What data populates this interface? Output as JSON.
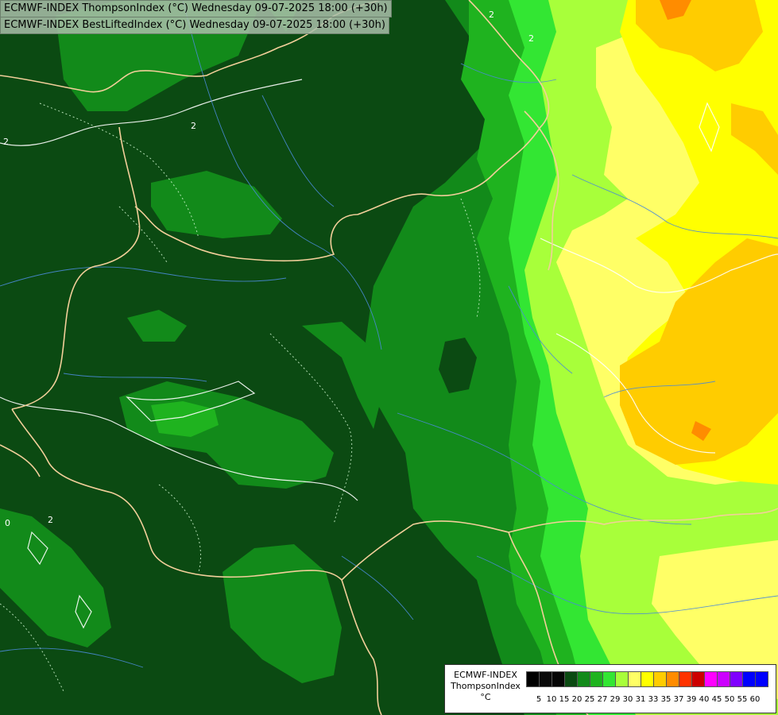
{
  "header": {
    "line1": "ECMWF-INDEX ThompsonIndex (°C) Wednesday 09-07-2025 18:00 (+30h)",
    "line2": "ECMWF-INDEX BestLiftedIndex (°C) Wednesday 09-07-2025 18:00 (+30h)"
  },
  "map": {
    "contour_labels": [
      "2",
      "2",
      "2",
      "2",
      "2",
      "0"
    ]
  },
  "legend": {
    "model": "ECMWF-INDEX",
    "variable": "ThompsonIndex",
    "unit": "°C",
    "ticks": [
      "5",
      "10",
      "15",
      "20",
      "25",
      "27",
      "29",
      "30",
      "31",
      "33",
      "35",
      "37",
      "39",
      "40",
      "45",
      "50",
      "55",
      "60"
    ],
    "colors": [
      "#000000",
      "#0a0a0a",
      "#050505",
      "#0b4a12",
      "#128a1a",
      "#1fb31f",
      "#33e633",
      "#a8ff3a",
      "#ffff66",
      "#ffff00",
      "#ffcc00",
      "#ff8c00",
      "#ff3300",
      "#cc0000",
      "#ff00ff",
      "#cc00ff",
      "#7f00ff",
      "#0000ff",
      "#0000ff"
    ]
  }
}
